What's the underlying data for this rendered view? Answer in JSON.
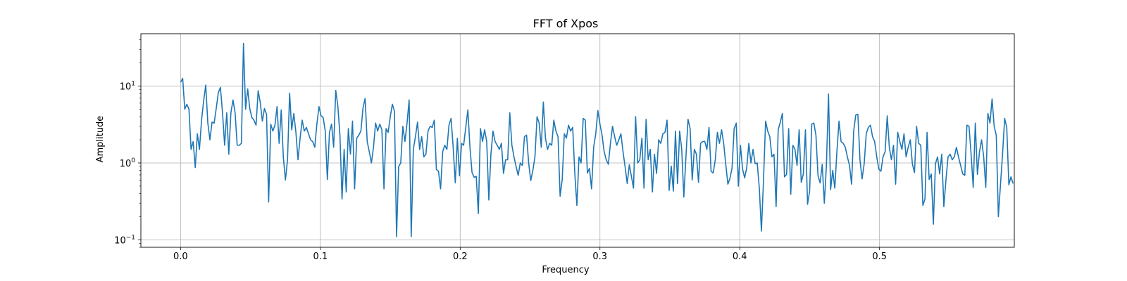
{
  "chart_data": {
    "type": "line",
    "title": "FFT of Xpos",
    "xlabel": "Frequency",
    "ylabel": "Amplitude",
    "xscale": "linear",
    "yscale": "log",
    "xlim": [
      -0.0284,
      0.5964
    ],
    "ylim": [
      0.08,
      48
    ],
    "grid": true,
    "line_color": "#1f77b4",
    "x_ticks": [
      0.0,
      0.1,
      0.2,
      0.3,
      0.4,
      0.5
    ],
    "x_tick_labels": [
      "0.0",
      "0.1",
      "0.2",
      "0.3",
      "0.4",
      "0.5"
    ],
    "y_ticks": [
      0.1,
      1,
      10
    ],
    "y_tick_labels": [
      {
        "base": "10",
        "exp": "−1"
      },
      {
        "base": "10",
        "exp": "0"
      },
      {
        "base": "10",
        "exp": "1"
      }
    ],
    "series": [
      {
        "x_start": 0.0,
        "x_step": 0.0015,
        "values": [
          11.2,
          12.6,
          5.0,
          5.8,
          5.0,
          1.5,
          1.9,
          0.87,
          2.4,
          1.5,
          3.6,
          6.4,
          10.3,
          3.3,
          2.0,
          3.4,
          3.3,
          5.1,
          8.2,
          9.6,
          4.5,
          1.7,
          4.5,
          1.3,
          4.5,
          6.6,
          4.5,
          1.7,
          1.7,
          1.8,
          36.0,
          5.0,
          9.2,
          5.1,
          3.9,
          3.6,
          3.1,
          8.7,
          6.1,
          3.5,
          5.1,
          4.3,
          0.31,
          3.2,
          2.6,
          3.1,
          5.4,
          1.8,
          4.9,
          1.2,
          0.6,
          1.1,
          8.1,
          2.7,
          4.4,
          2.5,
          1.1,
          2.1,
          3.6,
          2.6,
          2.9,
          2.4,
          2.0,
          1.9,
          1.6,
          3.2,
          5.4,
          4.1,
          3.9,
          2.6,
          0.61,
          2.5,
          3.2,
          1.6,
          8.8,
          5.5,
          2.3,
          0.34,
          1.5,
          0.42,
          2.8,
          1.3,
          3.5,
          0.46,
          2.1,
          2.3,
          2.6,
          5.2,
          6.9,
          1.9,
          1.4,
          1.0,
          1.6,
          3.3,
          2.6,
          3.2,
          2.7,
          0.46,
          2.8,
          2.5,
          4.0,
          5.8,
          4.7,
          0.11,
          0.9,
          1.0,
          3.0,
          1.9,
          3.3,
          6.6,
          0.11,
          1.5,
          2.2,
          3.4,
          1.5,
          2.2,
          1.2,
          1.3,
          2.6,
          3.0,
          2.9,
          3.6,
          0.82,
          0.78,
          0.46,
          1.4,
          1.7,
          1.5,
          3.1,
          3.8,
          1.6,
          0.55,
          2.1,
          0.68,
          1.8,
          1.7,
          2.9,
          4.9,
          1.6,
          0.75,
          0.65,
          0.67,
          0.22,
          2.8,
          1.9,
          2.7,
          1.9,
          0.33,
          1.3,
          2.6,
          1.9,
          1.7,
          1.5,
          1.8,
          0.73,
          1.1,
          1.1,
          4.5,
          1.7,
          1.2,
          0.9,
          0.69,
          1.0,
          0.93,
          2.2,
          2.3,
          1.0,
          0.59,
          0.8,
          1.2,
          4.0,
          3.3,
          1.6,
          6.2,
          2.1,
          1.5,
          1.8,
          1.7,
          3.6,
          2.6,
          2.2,
          0.37,
          0.61,
          2.4,
          2.1,
          3.1,
          2.6,
          2.9,
          0.74,
          0.28,
          1.2,
          1.0,
          3.8,
          3.6,
          0.74,
          0.85,
          0.46,
          1.6,
          2.4,
          4.8,
          3.2,
          2.3,
          1.4,
          1.1,
          0.96,
          1.8,
          3.0,
          2.2,
          1.7,
          2.0,
          2.4,
          1.4,
          0.89,
          0.54,
          0.95,
          0.67,
          0.47,
          4.0,
          1.0,
          1.1,
          2.1,
          0.47,
          3.7,
          1.1,
          1.5,
          0.42,
          1.3,
          0.73,
          2.0,
          1.8,
          2.4,
          2.5,
          3.6,
          0.44,
          0.91,
          0.43,
          2.6,
          0.54,
          2.6,
          1.5,
          0.36,
          1.2,
          3.7,
          2.8,
          0.6,
          1.5,
          1.3,
          0.56,
          1.8,
          1.9,
          1.9,
          1.5,
          2.9,
          0.78,
          0.74,
          1.1,
          2.5,
          1.8,
          2.7,
          1.8,
          0.96,
          0.53,
          0.63,
          0.86,
          2.8,
          3.3,
          0.5,
          1.7,
          0.84,
          0.64,
          0.87,
          1.8,
          1.0,
          1.5,
          0.98,
          1.0,
          0.47,
          0.13,
          0.6,
          3.5,
          2.6,
          2.2,
          1.2,
          1.3,
          0.27,
          2.7,
          3.4,
          4.4,
          0.66,
          0.71,
          2.8,
          0.39,
          1.7,
          1.5,
          0.93,
          2.7,
          0.56,
          0.72,
          2.7,
          0.29,
          0.43,
          3.2,
          3.3,
          2.3,
          0.68,
          0.55,
          0.96,
          0.3,
          0.93,
          7.9,
          0.45,
          0.8,
          0.47,
          1.4,
          3.5,
          1.9,
          1.8,
          1.6,
          1.2,
          0.93,
          0.53,
          2.6,
          4.2,
          4.3,
          1.1,
          0.62,
          0.97,
          2.4,
          2.9,
          3.1,
          2.2,
          1.9,
          1.2,
          0.83,
          0.78,
          1.2,
          1.4,
          4.1,
          1.6,
          1.1,
          1.7,
          0.53,
          2.5,
          1.9,
          1.5,
          2.4,
          1.2,
          1.6,
          2.0,
          0.97,
          0.75,
          3.0,
          1.8,
          1.7,
          0.28,
          0.34,
          2.5,
          0.61,
          0.72,
          0.16,
          0.98,
          1.2,
          0.72,
          1.3,
          0.27,
          0.6,
          1.2,
          1.3,
          1.1,
          1.2,
          1.6,
          1.2,
          0.93,
          0.72,
          0.69,
          3.1,
          3.0,
          1.3,
          0.48,
          3.3,
          0.71,
          1.4,
          2.0,
          1.2,
          0.48,
          4.4,
          3.3,
          6.8,
          3.0,
          2.3,
          0.2,
          0.52,
          1.3,
          3.8,
          2.9,
          0.52,
          0.66,
          0.54
        ]
      }
    ]
  }
}
